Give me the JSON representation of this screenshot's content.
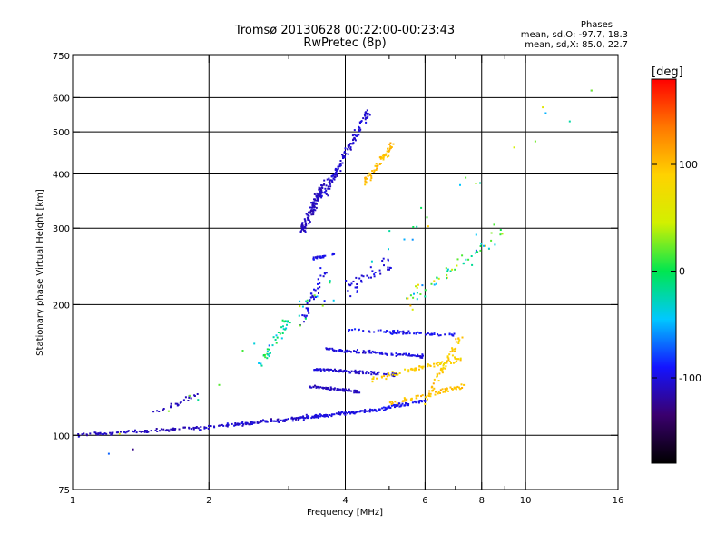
{
  "header": {
    "title_line1": "Tromsø 20130628 00:22:00-00:23:43",
    "title_line2": "RwPretec (8p)",
    "phases_title": "Phases",
    "phase_o": "mean, sd,O: -97.7, 18.3",
    "phase_x": "mean, sd,X: 85.0, 22.7"
  },
  "chart_data": {
    "type": "scatter",
    "xlabel": "Frequency [MHz]",
    "ylabel": "Stationary phase Virtual Height [km]",
    "xscale": "log",
    "yscale": "log",
    "xlim": [
      1,
      16
    ],
    "ylim": [
      75,
      750
    ],
    "xticks": [
      1,
      2,
      4,
      6,
      8,
      10,
      16
    ],
    "xtick_labels": [
      "1",
      "2",
      "4",
      "6",
      "8",
      "10",
      "16"
    ],
    "x_minor_ticks": [
      3,
      5,
      7,
      9
    ],
    "x_gridlines": [
      2,
      4,
      6,
      8,
      10
    ],
    "yticks": [
      75,
      100,
      200,
      300,
      400,
      500,
      600,
      750
    ],
    "ytick_labels": [
      "75",
      "100",
      "200",
      "300",
      "400",
      "500",
      "600",
      "750"
    ],
    "y_gridlines": [
      100,
      200,
      300,
      400,
      500,
      600
    ],
    "grid": true,
    "colorbar": {
      "label": "[deg]",
      "range": [
        -180,
        180
      ],
      "ticks": [
        -100,
        0,
        100
      ],
      "tick_labels": [
        "-100",
        "0",
        "100"
      ],
      "colormap": [
        "#000000",
        "#3a006e",
        "#1414ff",
        "#00c8ff",
        "#00e650",
        "#d2f000",
        "#ffd200",
        "#ff7800",
        "#ff0000"
      ]
    },
    "series": [
      {
        "segments": [
          {
            "f": [
              1.0,
              1.9
            ],
            "h": [
              100,
              104
            ],
            "n": 90,
            "jit": 0.012,
            "ph": -110,
            "ps": 12
          },
          {
            "f": [
              1.9,
              3.3
            ],
            "h": [
              104,
              110
            ],
            "n": 130,
            "jit": 0.015,
            "ph": -105,
            "ps": 18
          },
          {
            "f": [
              3.3,
              4.6
            ],
            "h": [
              110,
              114
            ],
            "n": 90,
            "jit": 0.012,
            "ph": -100,
            "ps": 12
          },
          {
            "f": [
              4.6,
              6.0
            ],
            "h": [
              114,
              120
            ],
            "n": 70,
            "jit": 0.014,
            "ph": -95,
            "ps": 14
          },
          {
            "f": [
              6.0,
              7.2
            ],
            "h": [
              120,
              170
            ],
            "n": 60,
            "jit": 0.03,
            "ph": 95,
            "ps": 25
          },
          {
            "f": [
              3.3,
              4.3
            ],
            "h": [
              130,
              126
            ],
            "n": 70,
            "jit": 0.012,
            "ph": -110,
            "ps": 10
          },
          {
            "f": [
              3.4,
              5.2
            ],
            "h": [
              142,
              138
            ],
            "n": 90,
            "jit": 0.012,
            "ph": -105,
            "ps": 12
          },
          {
            "f": [
              3.6,
              6.0
            ],
            "h": [
              158,
              152
            ],
            "n": 90,
            "jit": 0.012,
            "ph": -100,
            "ps": 14
          },
          {
            "f": [
              4.0,
              7.0
            ],
            "h": [
              175,
              170
            ],
            "n": 70,
            "jit": 0.015,
            "ph": -95,
            "ps": 18
          },
          {
            "f": [
              4.6,
              7.2
            ],
            "h": [
              135,
              150
            ],
            "n": 70,
            "jit": 0.02,
            "ph": 90,
            "ps": 22
          },
          {
            "f": [
              5.0,
              7.3
            ],
            "h": [
              118,
              130
            ],
            "n": 60,
            "jit": 0.02,
            "ph": 100,
            "ps": 20
          },
          {
            "f": [
              3.2,
              3.6
            ],
            "h": [
              295,
              380
            ],
            "n": 130,
            "jit": 0.035,
            "ph": -110,
            "ps": 12
          },
          {
            "f": [
              3.6,
              4.5
            ],
            "h": [
              360,
              560
            ],
            "n": 130,
            "jit": 0.035,
            "ph": -105,
            "ps": 15
          },
          {
            "f": [
              4.4,
              5.1
            ],
            "h": [
              380,
              470
            ],
            "n": 60,
            "jit": 0.035,
            "ph": 100,
            "ps": 22
          },
          {
            "f": [
              3.2,
              3.6
            ],
            "h": [
              180,
              240
            ],
            "n": 40,
            "jit": 0.04,
            "ph": -100,
            "ps": 12
          },
          {
            "f": [
              3.4,
              3.8
            ],
            "h": [
              255,
              262
            ],
            "n": 25,
            "jit": 0.01,
            "ph": -100,
            "ps": 15
          },
          {
            "f": [
              2.6,
              3.0
            ],
            "h": [
              145,
              185
            ],
            "n": 40,
            "jit": 0.04,
            "ph": -20,
            "ps": 50
          },
          {
            "f": [
              1.5,
              1.9
            ],
            "h": [
              112,
              125
            ],
            "n": 25,
            "jit": 0.02,
            "ph": -110,
            "ps": 10
          },
          {
            "f": [
              4.0,
              5.0
            ],
            "h": [
              215,
              250
            ],
            "n": 40,
            "jit": 0.06,
            "ph": -100,
            "ps": 12
          },
          {
            "f": [
              5.5,
              9.0
            ],
            "h": [
              200,
              300
            ],
            "n": 60,
            "jit": 0.08,
            "ph": 0,
            "ps": 120
          },
          {
            "f": [
              1.0,
              16.0
            ],
            "h": [
              75,
              700
            ],
            "n": 45,
            "jit": 0.12,
            "ph": 0,
            "ps": 150
          }
        ]
      }
    ]
  }
}
